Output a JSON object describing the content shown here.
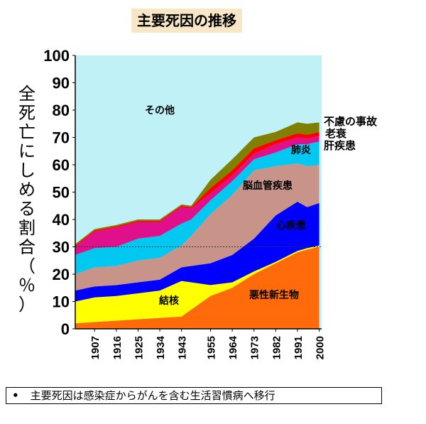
{
  "title": "主要死因の推移",
  "footer": {
    "bullet": "•",
    "text": "主要死因は感染症からがんを含む生活習慣病へ移行"
  },
  "colors": {
    "background": "#bff1f6",
    "cancer": "#ff6a0a",
    "tuberculosis": "#ffff00",
    "heart": "#0000ff",
    "cerebrovascular": "#c8948a",
    "pneumonia": "#00c8f0",
    "liver": "#e0108c",
    "senility": "#ff0000",
    "accident": "#808000"
  },
  "chart_data": {
    "type": "area",
    "stacked": true,
    "ylabel": "全死亡にしめる割合（％）",
    "ylim": [
      0,
      100
    ],
    "yticks": [
      0,
      10,
      20,
      30,
      40,
      50,
      60,
      70,
      80,
      90,
      100
    ],
    "xlim": [
      1899,
      2001
    ],
    "xticks": [
      1907,
      1916,
      1925,
      1934,
      1943,
      1955,
      1964,
      1973,
      1982,
      1991,
      2000
    ],
    "reference_line": 30,
    "x": [
      1899,
      1907,
      1916,
      1925,
      1934,
      1943,
      1947,
      1955,
      1964,
      1973,
      1982,
      1991,
      1995,
      2000
    ],
    "series": [
      {
        "name": "悪性新生物",
        "key": "cancer",
        "values": [
          2,
          2.5,
          3,
          3.5,
          4,
          4.5,
          7,
          12,
          15,
          20,
          24,
          28,
          29,
          30
        ]
      },
      {
        "name": "結核",
        "key": "tuberculosis",
        "values": [
          8,
          9,
          9,
          9.5,
          10,
          13,
          10,
          4,
          2,
          1,
          0.5,
          0.5,
          0.5,
          0.5
        ]
      },
      {
        "name": "心疾患",
        "key": "heart",
        "values": [
          4,
          4,
          4,
          4,
          4,
          5,
          6,
          8,
          10,
          12,
          17,
          18,
          15,
          15.5
        ]
      },
      {
        "name": "脳血管疾患",
        "key": "cerebrovascular",
        "values": [
          6,
          7,
          7,
          8,
          8,
          8,
          11,
          18,
          22,
          25,
          18,
          14,
          15,
          14
        ]
      },
      {
        "name": "肺炎",
        "key": "pneumonia",
        "values": [
          7,
          7,
          7,
          8,
          8,
          8,
          6,
          5,
          5,
          4,
          5,
          7,
          8,
          8.5
        ]
      },
      {
        "name": "肝疾患",
        "key": "liver",
        "values": [
          3,
          6,
          7,
          6,
          5,
          6,
          4,
          2.5,
          2,
          2,
          3,
          2.5,
          2,
          2
        ]
      },
      {
        "name": "老衰",
        "key": "senility",
        "values": [
          0.5,
          0.5,
          0.5,
          0.5,
          0.5,
          0.5,
          0.5,
          2,
          2,
          2,
          1.5,
          1.5,
          1.5,
          1.5
        ]
      },
      {
        "name": "不慮の事故",
        "key": "accident",
        "values": [
          0.5,
          0.5,
          0.5,
          0.5,
          0.5,
          0.5,
          0.5,
          3,
          4,
          4,
          3,
          4,
          4,
          3.5
        ]
      }
    ],
    "labels": {
      "other": "その他",
      "cancer": "悪性新生物",
      "tuberculosis": "結核",
      "heart": "心疾患",
      "cerebrovascular": "脳血管疾患",
      "pneumonia": "肺炎",
      "liver": "肝疾患",
      "senility": "老衰",
      "accident": "不慮の事故"
    }
  }
}
